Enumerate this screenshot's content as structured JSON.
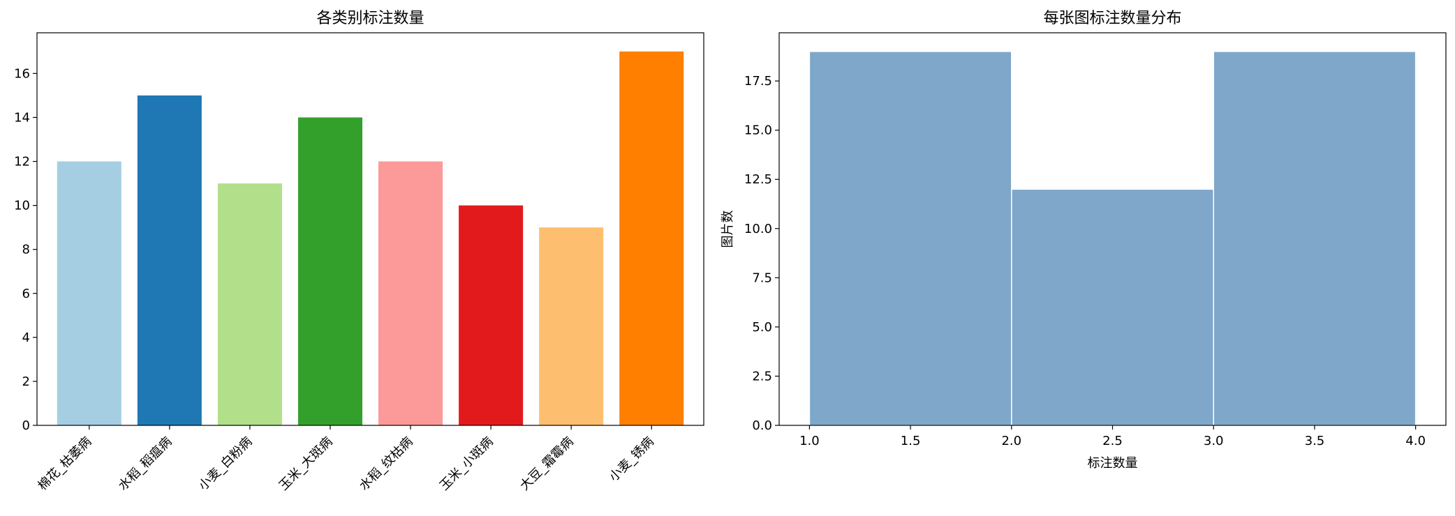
{
  "chart_data": [
    {
      "type": "bar",
      "title": "各类别标注数量",
      "xlabel": "",
      "ylabel": "",
      "categories": [
        "棉花_枯萎病",
        "水稻_稻瘟病",
        "小麦_白粉病",
        "玉米_大斑病",
        "水稻_纹枯病",
        "玉米_小斑病",
        "大豆_霜霉病",
        "小麦_锈病"
      ],
      "values": [
        12,
        15,
        11,
        14,
        12,
        10,
        9,
        17
      ],
      "colors": [
        "#a6cee3",
        "#1f78b4",
        "#b2df8a",
        "#33a02c",
        "#fb9a99",
        "#e31a1c",
        "#fdbf6f",
        "#ff7f00"
      ],
      "ylim": [
        0,
        17.85
      ],
      "yticks": [
        0,
        2,
        4,
        6,
        8,
        10,
        12,
        14,
        16
      ],
      "grid": false
    },
    {
      "type": "bar",
      "subtype": "histogram",
      "title": "每张图标注数量分布",
      "xlabel": "标注数量",
      "ylabel": "图片数",
      "bins": [
        [
          1,
          2
        ],
        [
          2,
          3
        ],
        [
          3,
          4
        ]
      ],
      "values": [
        19,
        12,
        19
      ],
      "color": "#7ea7ca",
      "xlim": [
        0.85,
        4.15
      ],
      "ylim": [
        0,
        19.95
      ],
      "xticks": [
        "1.0",
        "1.5",
        "2.0",
        "2.5",
        "3.0",
        "3.5",
        "4.0"
      ],
      "yticks": [
        "0.0",
        "2.5",
        "5.0",
        "7.5",
        "10.0",
        "12.5",
        "15.0",
        "17.5"
      ],
      "grid": false
    }
  ]
}
